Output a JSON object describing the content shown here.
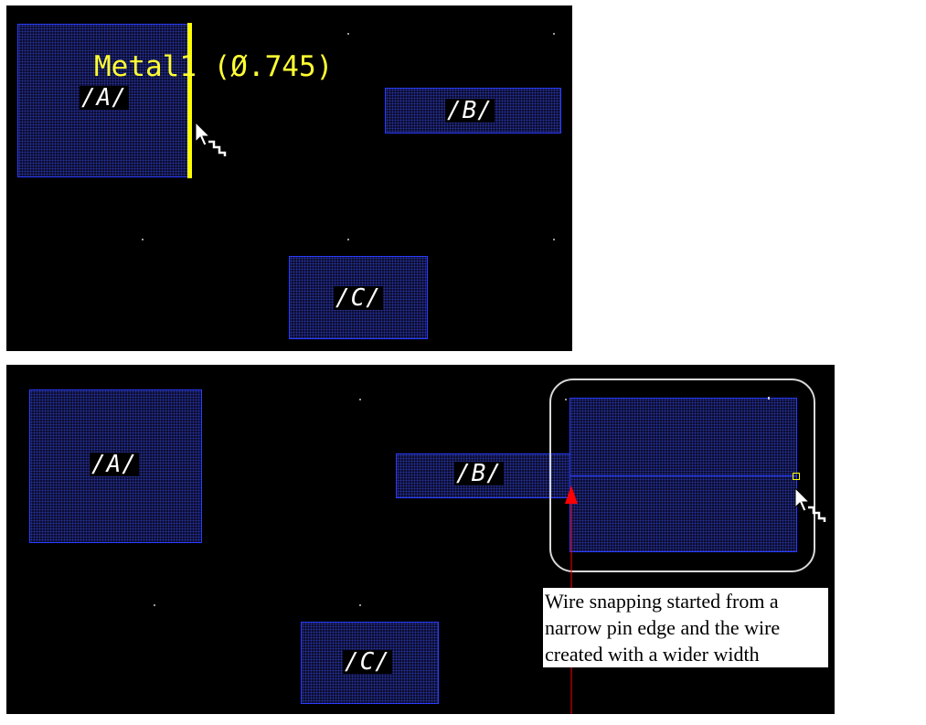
{
  "top_view": {
    "pins": {
      "a": "/A/",
      "b": "/B/",
      "c": "/C/"
    },
    "snap_readout": "Metal1 (Ø.745)"
  },
  "bottom_view": {
    "pins": {
      "a": "/A/",
      "b": "/B/",
      "c": "/C/"
    }
  },
  "annotation": {
    "lines": [
      "Wire snapping started from a",
      "narrow pin edge and the wire",
      "created with a wider width"
    ]
  },
  "colors": {
    "canvas_bg": "#000000",
    "pin_outline": "#2a3cff",
    "snap_highlight": "#ffff00",
    "arrow": "#ff0000",
    "label": "#ffffff"
  },
  "icons": {
    "cursor": "arrow-pointer-with-snap-icon"
  }
}
